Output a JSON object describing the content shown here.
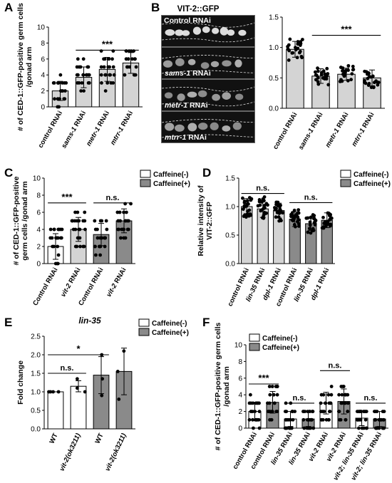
{
  "panel_labels": [
    "A",
    "B",
    "C",
    "D",
    "E",
    "F"
  ],
  "microscopy": {
    "title": "VIT-2::GFP",
    "image_labels": [
      "Control RNAi",
      "sams-1 RNAi",
      "metr-1 RNAi",
      "mtrr-1 RNAi"
    ]
  },
  "colors": {
    "white_bar": "#ffffff",
    "light_bar": "#d4d4d4",
    "dark_bar": "#8a8a8a",
    "dot": "#000000",
    "micro_bg": "#111111",
    "gfp": "#e8e8e8"
  },
  "chart_data": [
    {
      "id": "A",
      "type": "bar",
      "categories": [
        "control RNAi",
        "sams-1 RNAi",
        "metr-1 RNAi",
        "mtrr-1 RNAi"
      ],
      "values": [
        2.0,
        3.7,
        4.7,
        5.5
      ],
      "sd": [
        1.2,
        1.3,
        1.5,
        1.3
      ],
      "ylabel": "# of CED-1::GFP-positive germ cells /gonad arm",
      "ylim": [
        0,
        10
      ],
      "yticks": [
        0,
        2,
        4,
        6,
        8,
        10
      ],
      "significance": [
        {
          "from": 1,
          "to": 3,
          "label": "***",
          "y": 7.1
        }
      ]
    },
    {
      "id": "B",
      "type": "bar",
      "categories": [
        "control RNAi",
        "sams-1 RNAi",
        "metr-1 RNAi",
        "mtrr-1 RNAi"
      ],
      "values": [
        0.97,
        0.53,
        0.56,
        0.5
      ],
      "sd": [
        0.13,
        0.12,
        0.1,
        0.13
      ],
      "ylabel": "Relative intensity of VIT-2::GFP",
      "ylim": [
        0,
        1.5
      ],
      "yticks": [
        0,
        0.5,
        1.0,
        1.5
      ],
      "significance": [
        {
          "from": 1,
          "to": 3,
          "label": "***",
          "y": 1.2
        }
      ]
    },
    {
      "id": "C",
      "type": "bar",
      "categories": [
        "Control RNAi",
        "vit-2 RNAi",
        "Control RNAi",
        "vit-2 RNAi"
      ],
      "values": [
        2.0,
        4.0,
        3.4,
        5.0
      ],
      "sd": [
        1.5,
        1.4,
        1.3,
        1.4
      ],
      "ylabel": "# of CED-1::GFP-positive germ cells /gonad arm",
      "ylim": [
        0,
        10
      ],
      "yticks": [
        0,
        2,
        4,
        6,
        8,
        10
      ],
      "legend": [
        "Caffeine(-)",
        "Caffeine(+)"
      ],
      "significance": [
        {
          "from": 0,
          "to": 1,
          "label": "***",
          "y": 7.1
        },
        {
          "from": 2,
          "to": 3,
          "label": "n.s.",
          "y": 7.1
        }
      ]
    },
    {
      "id": "D",
      "type": "bar",
      "categories": [
        "control RNAi",
        "lin-35 RNAi",
        "dpl-1 RNAi",
        "control RNAi",
        "lin-35 RNAi",
        "dpl-1 RNAi"
      ],
      "values": [
        1.0,
        0.96,
        0.93,
        0.78,
        0.7,
        0.76
      ],
      "sd": [
        0.14,
        0.15,
        0.13,
        0.13,
        0.12,
        0.13
      ],
      "ylabel": "Relative intensity of VIT-2::GFP",
      "ylim": [
        0,
        1.5
      ],
      "yticks": [
        0,
        0.5,
        1.0,
        1.5
      ],
      "legend": [
        "Caffeine(-)",
        "Caffeine(+)"
      ],
      "significance": [
        {
          "from": 0,
          "to": 2,
          "label": "n.s.",
          "y": 1.23
        },
        {
          "from": 3,
          "to": 5,
          "label": "n.s.",
          "y": 1.07
        }
      ]
    },
    {
      "id": "E",
      "type": "bar",
      "title": "lin-35",
      "categories": [
        "WT",
        "vit-2(ok3211)",
        "WT",
        "vit-2(ok3211)"
      ],
      "values": [
        1.0,
        1.15,
        1.45,
        1.55
      ],
      "sd": [
        0.0,
        0.15,
        0.5,
        0.63
      ],
      "ylabel": "Fold change",
      "ylim": [
        0,
        2.5
      ],
      "yticks": [
        0,
        0.5,
        1.0,
        1.5,
        2.0,
        2.5
      ],
      "legend": [
        "Caffeine(-)",
        "Caffeine(+)"
      ],
      "significance": [
        {
          "from": 0,
          "to": 1,
          "label": "n.s.",
          "y": 1.5
        },
        {
          "from": 0,
          "to": 2,
          "label": "*",
          "y": 2.0
        }
      ]
    },
    {
      "id": "F",
      "type": "bar",
      "categories": [
        "control RNAi",
        "control RNAi",
        "lin-35 RNAi",
        "lin-35 RNAi",
        "vit-2 RNAi",
        "vit-2 RNAi",
        "vit-2; lin-35 RNAi",
        "vit-2; lin-35 RNAi"
      ],
      "values": [
        2.0,
        3.1,
        1.1,
        1.1,
        3.0,
        3.2,
        1.2,
        1.1
      ],
      "sd": [
        1.1,
        1.3,
        0.9,
        0.9,
        1.3,
        1.5,
        0.9,
        0.9
      ],
      "ylabel": "# of CED-1::GFP-positive germ cells /gonad arm",
      "ylim": [
        0,
        10
      ],
      "yticks": [
        0,
        2,
        4,
        6,
        8,
        10
      ],
      "legend": [
        "Caffeine(-)",
        "Caffeine(+)"
      ],
      "significance": [
        {
          "from": 0,
          "to": 1,
          "label": "***",
          "y": 5.3
        },
        {
          "from": 2,
          "to": 3,
          "label": "n.s.",
          "y": 3.0
        },
        {
          "from": 4,
          "to": 5,
          "label": "n.s.",
          "y": 6.9
        },
        {
          "from": 6,
          "to": 7,
          "label": "n.s.",
          "y": 3.0
        }
      ]
    }
  ]
}
